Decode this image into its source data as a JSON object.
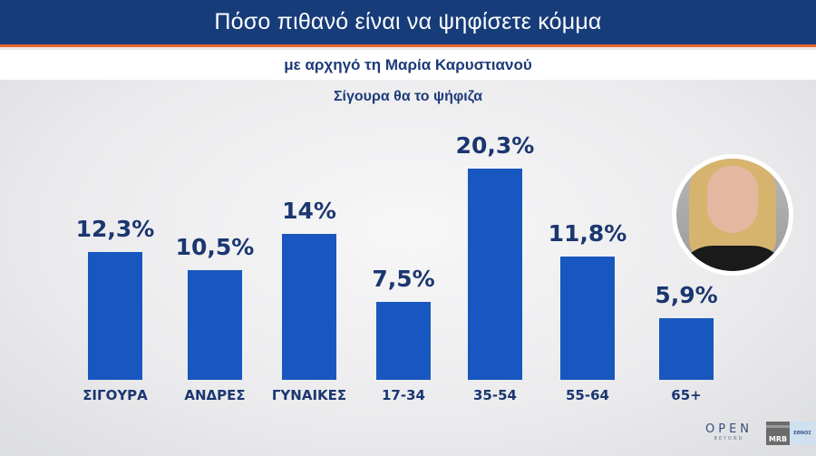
{
  "header": {
    "title": "Πόσο πιθανό είναι να ψηφίσετε κόμμα"
  },
  "subheader": {
    "subtitle": "με αρχηγό τη Μαρία Καρυστιανού"
  },
  "caption": "Σίγουρα θα το ψήφιζα",
  "colors": {
    "header_bg": "#173c7a",
    "accent": "#e8642a",
    "bar": "#1857bf",
    "text": "#1b3670"
  },
  "chart_data": {
    "type": "bar",
    "title": "Πόσο πιθανό είναι να ψηφίσετε κόμμα με αρχηγό τη Μαρία Καρυστιανού",
    "subtitle": "Σίγουρα θα το ψήφιζα",
    "categories": [
      "ΣΙΓΟΥΡΑ",
      "ΑΝΔΡΕΣ",
      "ΓΥΝΑΙΚΕΣ",
      "17-34",
      "35-54",
      "55-64",
      "65+"
    ],
    "values": [
      12.3,
      10.5,
      14,
      7.5,
      20.3,
      11.8,
      5.9
    ],
    "labels": [
      "12,3%",
      "10,5%",
      "14%",
      "7,5%",
      "20,3%",
      "11,8%",
      "5,9%"
    ],
    "xlabel": "",
    "ylabel": "",
    "grid": false,
    "legend": "none",
    "unit": "%"
  },
  "logos": {
    "open_main": "OPEN",
    "open_sub": "BEYOND",
    "mrb": "MRB",
    "ethnos": "ΕΘΝΟΣ"
  }
}
